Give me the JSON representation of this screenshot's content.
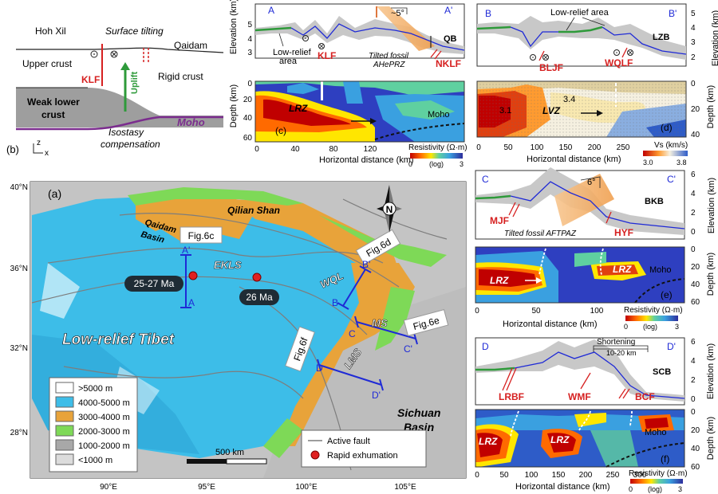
{
  "panel_b": {
    "letter": "(b)",
    "hoh_xil": "Hoh Xil",
    "surface_tilting": "Surface tilting",
    "qaidam": "Qaidam",
    "upper_crust": "Upper crust",
    "klf": "KLF",
    "uplift": "Uplift",
    "rigid_crust": "Rigid crust",
    "weak_lower_crust_1": "Weak lower",
    "weak_lower_crust_2": "crust",
    "moho": "Moho",
    "isostasy_1": "Isostasy",
    "isostasy_2": "compensation",
    "axis_z": "z",
    "axis_x": "x",
    "colors": {
      "lower_crust": "#9e9e9e",
      "moho": "#7b2d8e",
      "uplift": "#2e9a3a",
      "fault": "#d62020"
    }
  },
  "panel_c": {
    "start": "A",
    "end": "A'",
    "elev_axis": "Elevation (km)",
    "elev_ticks": [
      "5",
      "4",
      "3"
    ],
    "low_relief_1": "Low-relief",
    "low_relief_2": "area",
    "klf": "KLF",
    "tilted_1": "Tilted fossil",
    "tilted_2": "AHePRZ",
    "angle": "~5°",
    "qb": "QB",
    "nklf": "NKLF",
    "depth_axis": "Depth (km)",
    "depth_ticks": [
      "0",
      "20",
      "40",
      "60"
    ],
    "lrz": "LRZ",
    "moho": "Moho",
    "letter": "(c)",
    "x_ticks": [
      "0",
      "40",
      "80",
      "120"
    ],
    "x_axis": "Horizontal distance (km)",
    "cbar_title": "Resistivity (Ω·m)",
    "cbar_min": "0",
    "cbar_mid": "(log)",
    "cbar_max": "3"
  },
  "panel_d": {
    "start": "B",
    "end": "B'",
    "low_relief": "Low-relief area",
    "lzb": "LZB",
    "bljf": "BLJF",
    "wqlf": "WQLF",
    "elev_ticks": [
      "5",
      "4",
      "3",
      "2"
    ],
    "elev_axis": "Elevation (km)",
    "lvz": "LVZ",
    "v1": "3.1",
    "v2": "3.4",
    "letter": "(d)",
    "depth_ticks": [
      "0",
      "20",
      "40"
    ],
    "depth_axis": "Depth (km)",
    "x_ticks": [
      "0",
      "50",
      "100",
      "150",
      "200",
      "250"
    ],
    "x_axis": "Horizontal distance (km)",
    "cbar_title": "Vs (km/s)",
    "cbar_min": "3.0",
    "cbar_max": "3.8"
  },
  "panel_e": {
    "start": "C",
    "end": "C'",
    "angle": "6°",
    "bkb": "BKB",
    "mjf": "MJF",
    "hyf": "HYF",
    "tilted": "Tilted fossil AFTPAZ",
    "elev_ticks": [
      "6",
      "4",
      "2",
      "0"
    ],
    "elev_axis": "Elevation (km)",
    "lrz_left": "LRZ",
    "lrz_right": "LRZ",
    "moho": "Moho",
    "letter": "(e)",
    "depth_ticks": [
      "0",
      "20",
      "40",
      "60"
    ],
    "depth_axis": "Depth (km)",
    "x_ticks": [
      "0",
      "50",
      "100"
    ],
    "x_axis": "Horizontal distance (km)",
    "cbar_title": "Resistivity (Ω·m)",
    "cbar_min": "0",
    "cbar_mid": "(log)",
    "cbar_max": "3"
  },
  "panel_f": {
    "start": "D",
    "end": "D'",
    "shortening_1": "Shortening",
    "shortening_2": "10-20 km",
    "scb": "SCB",
    "lrbf": "LRBF",
    "wmf": "WMF",
    "bcf": "BCF",
    "elev_ticks": [
      "6",
      "4",
      "2",
      "0"
    ],
    "elev_axis": "Elevation (km)",
    "lrz_1": "LRZ",
    "lrz_2": "LRZ",
    "moho": "Moho",
    "letter": "(f)",
    "depth_ticks": [
      "0",
      "20",
      "40",
      "60"
    ],
    "depth_axis": "Depth (km)",
    "x_ticks": [
      "0",
      "50",
      "100",
      "150",
      "200",
      "250",
      "300"
    ],
    "x_axis": "Horizontal distance (km)",
    "cbar_title": "Resistivity (Ω·m)",
    "cbar_min": "0",
    "cbar_mid": "(log)",
    "cbar_max": "3"
  },
  "panel_a": {
    "letter": "(a)",
    "lat_ticks": [
      "40°N",
      "36°N",
      "32°N",
      "28°N"
    ],
    "lon_ticks": [
      "90°E",
      "95°E",
      "100°E",
      "105°E"
    ],
    "qaidam_basin_1": "Qaidam",
    "qaidam_basin_2": "Basin",
    "qilian_shan": "Qilian Shan",
    "eklS": "EKLS",
    "wql": "WQL",
    "ms": "MS",
    "lms": "LMS",
    "low_relief_tibet": "Low-relief Tibet",
    "sichuan_1": "Sichuan",
    "sichuan_2": "Basin",
    "age_1": "25-27 Ma",
    "age_2": "26 Ma",
    "fig6c": "Fig.6c",
    "fig6d": "Fig.6d",
    "fig6e": "Fig.6e",
    "fig6f": "Fig.6f",
    "A": "A",
    "A2": "A'",
    "B": "B",
    "B2": "B'",
    "C": "C",
    "C2": "C'",
    "D": "D",
    "D2": "D'",
    "north": "N",
    "scale": "500 km",
    "legend": [
      {
        "label": ">5000 m",
        "color": "#ffffff"
      },
      {
        "label": "4000-5000 m",
        "color": "#3dbde8"
      },
      {
        "label": "3000-4000 m",
        "color": "#e8a33a"
      },
      {
        "label": "2000-3000 m",
        "color": "#7ed957"
      },
      {
        "label": "1000-2000 m",
        "color": "#a8a8a8"
      },
      {
        "label": "<1000 m",
        "color": "#dcdcdc"
      }
    ],
    "legend2": [
      {
        "label": "Active fault"
      },
      {
        "label": "Rapid exhumation"
      }
    ]
  }
}
